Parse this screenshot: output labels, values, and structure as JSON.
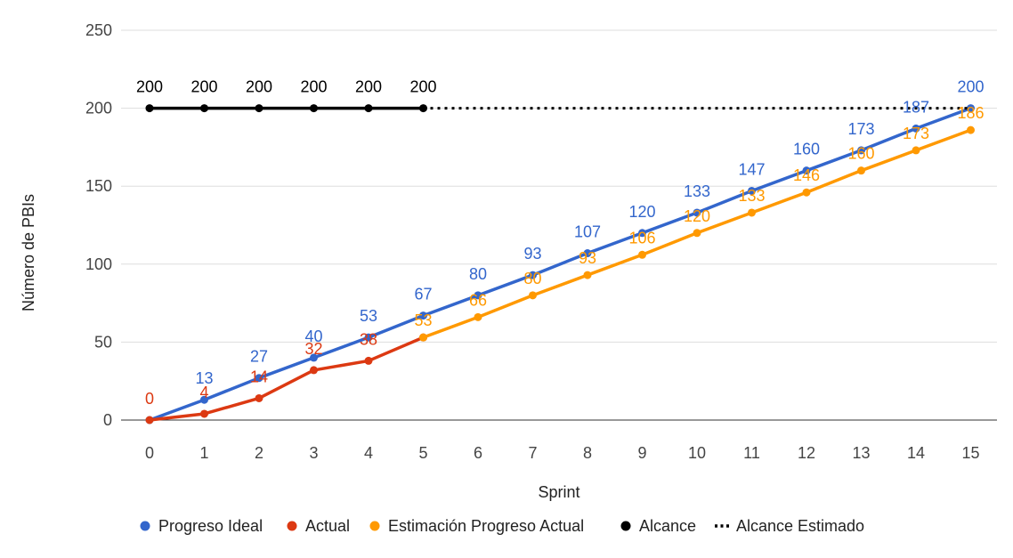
{
  "chart_data": {
    "type": "line",
    "title": "",
    "xlabel": "Sprint",
    "ylabel": "Número de PBIs",
    "x": [
      0,
      1,
      2,
      3,
      4,
      5,
      6,
      7,
      8,
      9,
      10,
      11,
      12,
      13,
      14,
      15
    ],
    "ylim": [
      0,
      250
    ],
    "yticks": [
      0,
      50,
      100,
      150,
      200,
      250
    ],
    "grid": true,
    "legend_position": "bottom",
    "series": [
      {
        "name": "Progreso Ideal",
        "color": "#3366cc",
        "style": "solid",
        "x": [
          0,
          1,
          2,
          3,
          4,
          5,
          6,
          7,
          8,
          9,
          10,
          11,
          12,
          13,
          14,
          15
        ],
        "values": [
          0,
          13,
          27,
          40,
          53,
          67,
          80,
          93,
          107,
          120,
          133,
          147,
          160,
          173,
          187,
          200
        ],
        "labels": [
          "",
          "13",
          "27",
          "40",
          "53",
          "67",
          "80",
          "93",
          "107",
          "120",
          "133",
          "147",
          "160",
          "173",
          "187",
          "200"
        ]
      },
      {
        "name": "Actual",
        "color": "#dc3912",
        "style": "solid",
        "x": [
          0,
          1,
          2,
          3,
          4,
          5
        ],
        "values": [
          0,
          4,
          14,
          32,
          38,
          53
        ],
        "labels": [
          "0",
          "4",
          "14",
          "32",
          "38",
          ""
        ]
      },
      {
        "name": "Estimación Progreso Actual",
        "color": "#ff9900",
        "style": "solid",
        "x": [
          5,
          6,
          7,
          8,
          9,
          10,
          11,
          12,
          13,
          14,
          15
        ],
        "values": [
          53,
          66,
          80,
          93,
          106,
          120,
          133,
          146,
          160,
          173,
          186
        ],
        "labels": [
          "53",
          "66",
          "80",
          "93",
          "106",
          "120",
          "133",
          "146",
          "160",
          "173",
          "186"
        ]
      },
      {
        "name": "Alcance",
        "color": "#000000",
        "style": "solid",
        "x": [
          0,
          1,
          2,
          3,
          4,
          5
        ],
        "values": [
          200,
          200,
          200,
          200,
          200,
          200
        ],
        "labels": [
          "200",
          "200",
          "200",
          "200",
          "200",
          "200"
        ]
      },
      {
        "name": "Alcance Estimado",
        "color": "#000000",
        "style": "dotted",
        "x": [
          5,
          15
        ],
        "values": [
          200,
          200
        ],
        "labels": [
          "",
          ""
        ]
      }
    ]
  }
}
